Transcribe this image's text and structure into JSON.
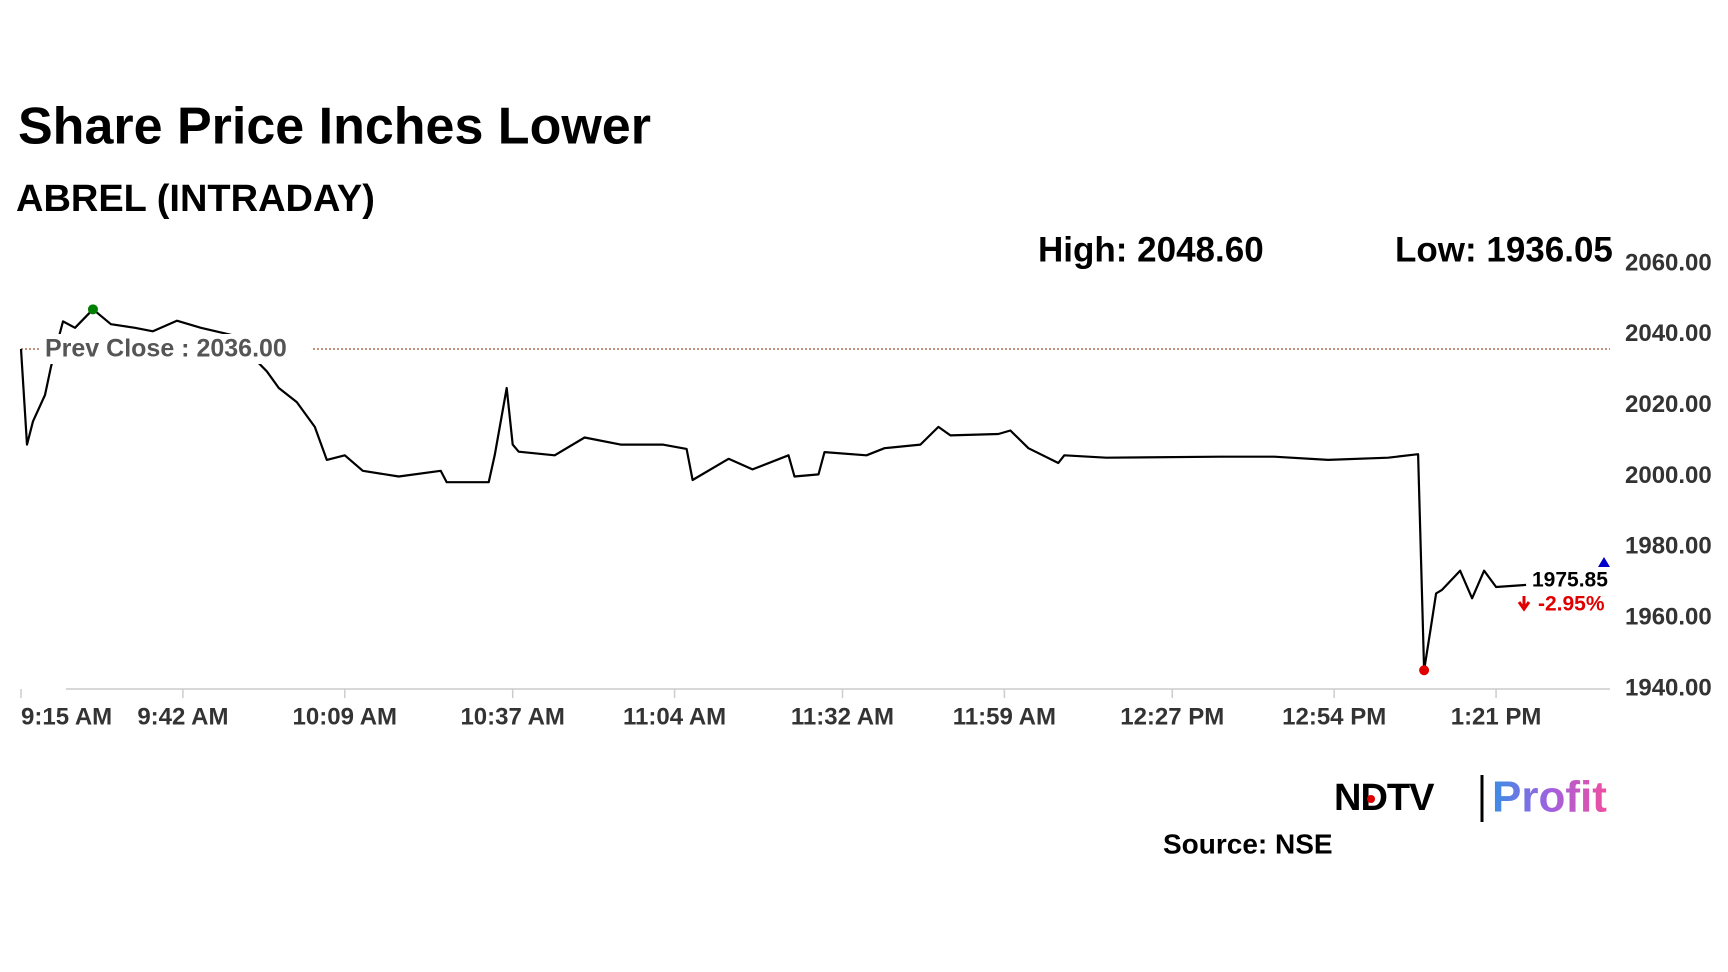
{
  "chart_data": {
    "type": "line",
    "title": "Share Price Inches Lower",
    "subtitle": "ABREL (INTRADAY)",
    "high_text": "High: 2048.60",
    "low_text": "Low: 1936.05",
    "prev_close": 2036,
    "prev_close_label": "Prev Close : 2036.00",
    "last": {
      "value": 1975.85,
      "label": "1975.85"
    },
    "change_label": "-2.95%",
    "source": "Source: NSE",
    "logo": {
      "left": "NDTV",
      "right": "Profit"
    },
    "x": [
      555,
      556,
      557,
      559,
      560,
      562,
      564,
      567,
      570,
      574,
      577,
      581,
      585,
      590,
      596,
      598,
      601,
      604,
      606,
      609,
      612,
      618,
      625,
      626,
      633,
      634,
      636,
      637,
      638,
      644,
      649,
      655,
      662,
      666,
      667,
      673,
      677,
      683,
      684,
      688,
      689,
      696,
      699,
      705,
      708,
      710,
      718,
      720,
      723,
      728,
      729,
      736,
      755,
      764,
      773,
      783,
      788,
      789,
      790,
      791,
      792,
      795,
      797,
      799,
      801,
      806
    ],
    "series": [
      {
        "name": "ABREL",
        "color": "#000000",
        "values": [
          2036,
          2009,
          2015.6,
          2023,
          2031,
          2043.8,
          2042,
          2047.2,
          2043,
          2042,
          2041,
          2044,
          2042,
          2040,
          2029.7,
          2025,
          2021,
          2014,
          2004.7,
          2006,
          2001.6,
          2000,
          2001.6,
          1998.4,
          1998.4,
          2006,
          2025,
          2009,
          2007,
          2006,
          2011,
          2009,
          2009,
          2007.8,
          1999,
          2005,
          2002,
          2006,
          2000,
          2000.6,
          2006.9,
          2006,
          2008,
          2009,
          2014,
          2011.6,
          2012,
          2013,
          2008,
          2003.8,
          2006,
          2005.3,
          2005.6,
          2005.6,
          2004.7,
          2005.3,
          2006.3,
          1945.3,
          1956,
          1967,
          1968,
          1973.4,
          1965.6,
          1973.4,
          1968.8,
          1969.4
        ]
      }
    ],
    "xlim": [
      555,
      820
    ],
    "xticks": [
      {
        "value": 555,
        "label": "9:15 AM"
      },
      {
        "value": 582,
        "label": "9:42 AM"
      },
      {
        "value": 609,
        "label": "10:09 AM"
      },
      {
        "value": 637,
        "label": "10:37 AM"
      },
      {
        "value": 664,
        "label": "11:04 AM"
      },
      {
        "value": 692,
        "label": "11:32 AM"
      },
      {
        "value": 719,
        "label": "11:59 AM"
      },
      {
        "value": 747,
        "label": "12:27 PM"
      },
      {
        "value": 774,
        "label": "12:54 PM"
      },
      {
        "value": 801,
        "label": "1:21 PM"
      }
    ],
    "ylim": [
      1940,
      2060
    ],
    "yticks": [
      {
        "value": 1940,
        "label": "1940.00"
      },
      {
        "value": 1960,
        "label": "1960.00"
      },
      {
        "value": 1980,
        "label": "1980.00"
      },
      {
        "value": 2000,
        "label": "2000.00"
      },
      {
        "value": 2020,
        "label": "2020.00"
      },
      {
        "value": 2040,
        "label": "2040.00"
      },
      {
        "value": 2060,
        "label": "2060.00"
      }
    ],
    "grid": false,
    "high_color": "#008000",
    "low_color": "#e00000",
    "last_color": "#0000cc",
    "prev_close_color": "#a0522d"
  }
}
